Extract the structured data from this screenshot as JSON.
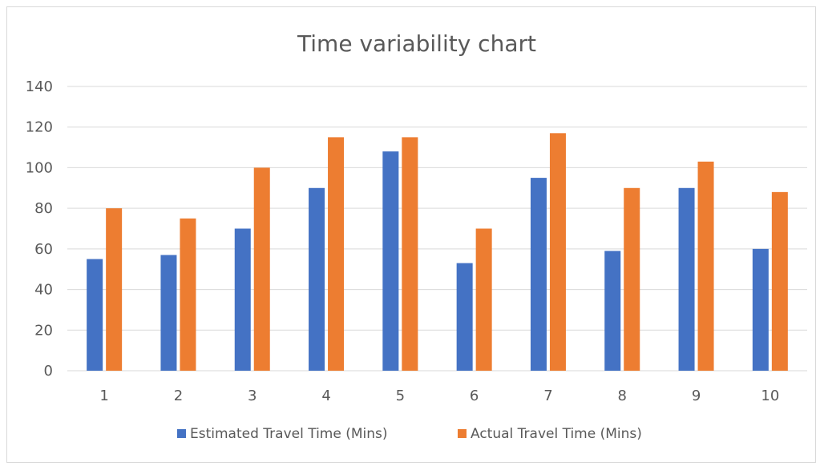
{
  "chart_data": {
    "type": "bar",
    "title": "Time variability chart",
    "xlabel": "",
    "ylabel": "",
    "categories": [
      "1",
      "2",
      "3",
      "4",
      "5",
      "6",
      "7",
      "8",
      "9",
      "10"
    ],
    "ylim": [
      0,
      140
    ],
    "yticks": [
      0,
      20,
      40,
      60,
      80,
      100,
      120,
      140
    ],
    "grid": true,
    "legend_position": "bottom",
    "series": [
      {
        "name": "Estimated Travel Time (Mins)",
        "color": "#4472c4",
        "values": [
          55,
          57,
          70,
          90,
          108,
          53,
          95,
          59,
          90,
          60
        ]
      },
      {
        "name": "Actual Travel Time (Mins)",
        "color": "#ed7d31",
        "values": [
          80,
          75,
          100,
          115,
          115,
          70,
          117,
          90,
          103,
          88
        ]
      }
    ]
  }
}
